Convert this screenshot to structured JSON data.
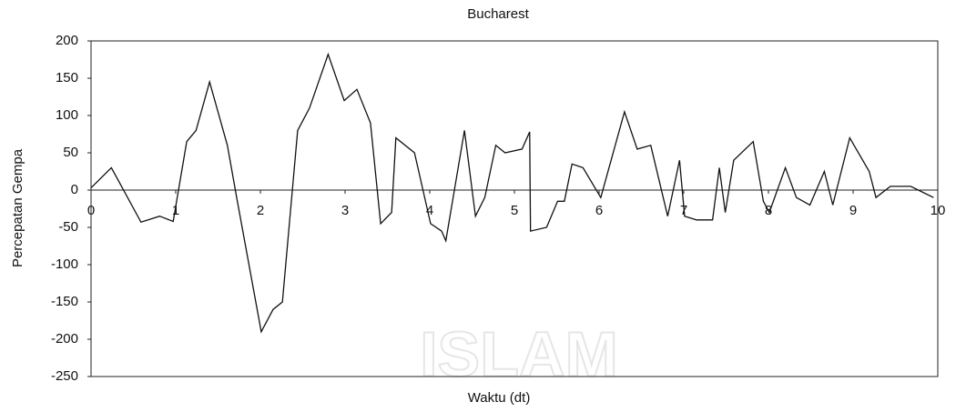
{
  "chart_data": {
    "type": "line",
    "title": "Bucharest",
    "xlabel": "Waktu (dt)",
    "ylabel": "Percepatan Gempa",
    "watermark": "ISLAM",
    "x": [
      0,
      0.24,
      0.59,
      0.81,
      0.97,
      1.13,
      1.24,
      1.4,
      1.61,
      1.72,
      2.01,
      2.15,
      2.26,
      2.44,
      2.58,
      2.8,
      2.99,
      3.14,
      3.3,
      3.42,
      3.55,
      3.6,
      3.82,
      4.01,
      4.14,
      4.19,
      4.41,
      4.54,
      4.65,
      4.78,
      4.89,
      5.09,
      5.18,
      5.19,
      5.38,
      5.51,
      5.59,
      5.68,
      5.81,
      6.02,
      6.3,
      6.45,
      6.61,
      6.81,
      6.95,
      7.01,
      7.15,
      7.34,
      7.42,
      7.49,
      7.59,
      7.82,
      7.94,
      8.01,
      8.2,
      8.33,
      8.49,
      8.66,
      8.76,
      8.96,
      9.19,
      9.27,
      9.44,
      9.68,
      9.95
    ],
    "series": [
      {
        "name": "Bucharest",
        "color": "#111111",
        "values": [
          3,
          30,
          -43,
          -35,
          -42,
          65,
          80,
          145,
          60,
          -10,
          -190,
          -160,
          -150,
          80,
          110,
          182,
          120,
          135,
          90,
          -45,
          -30,
          70,
          50,
          -45,
          -55,
          -68,
          80,
          -35,
          -10,
          60,
          50,
          55,
          78,
          -55,
          -50,
          -15,
          -15,
          35,
          30,
          -10,
          105,
          55,
          60,
          -35,
          40,
          -35,
          -40,
          -40,
          30,
          -30,
          40,
          65,
          -15,
          -30,
          30,
          -10,
          -20,
          25,
          -20,
          70,
          25,
          -10,
          5,
          5,
          -10
        ]
      }
    ],
    "xlim": [
      0,
      10
    ],
    "xticks": [
      0,
      1,
      2,
      3,
      4,
      5,
      6,
      7,
      8,
      9,
      10
    ],
    "ylim": [
      -250,
      200
    ],
    "yticks": [
      -250,
      -200,
      -150,
      -100,
      -50,
      0,
      50,
      100,
      150,
      200
    ],
    "grid": false
  }
}
